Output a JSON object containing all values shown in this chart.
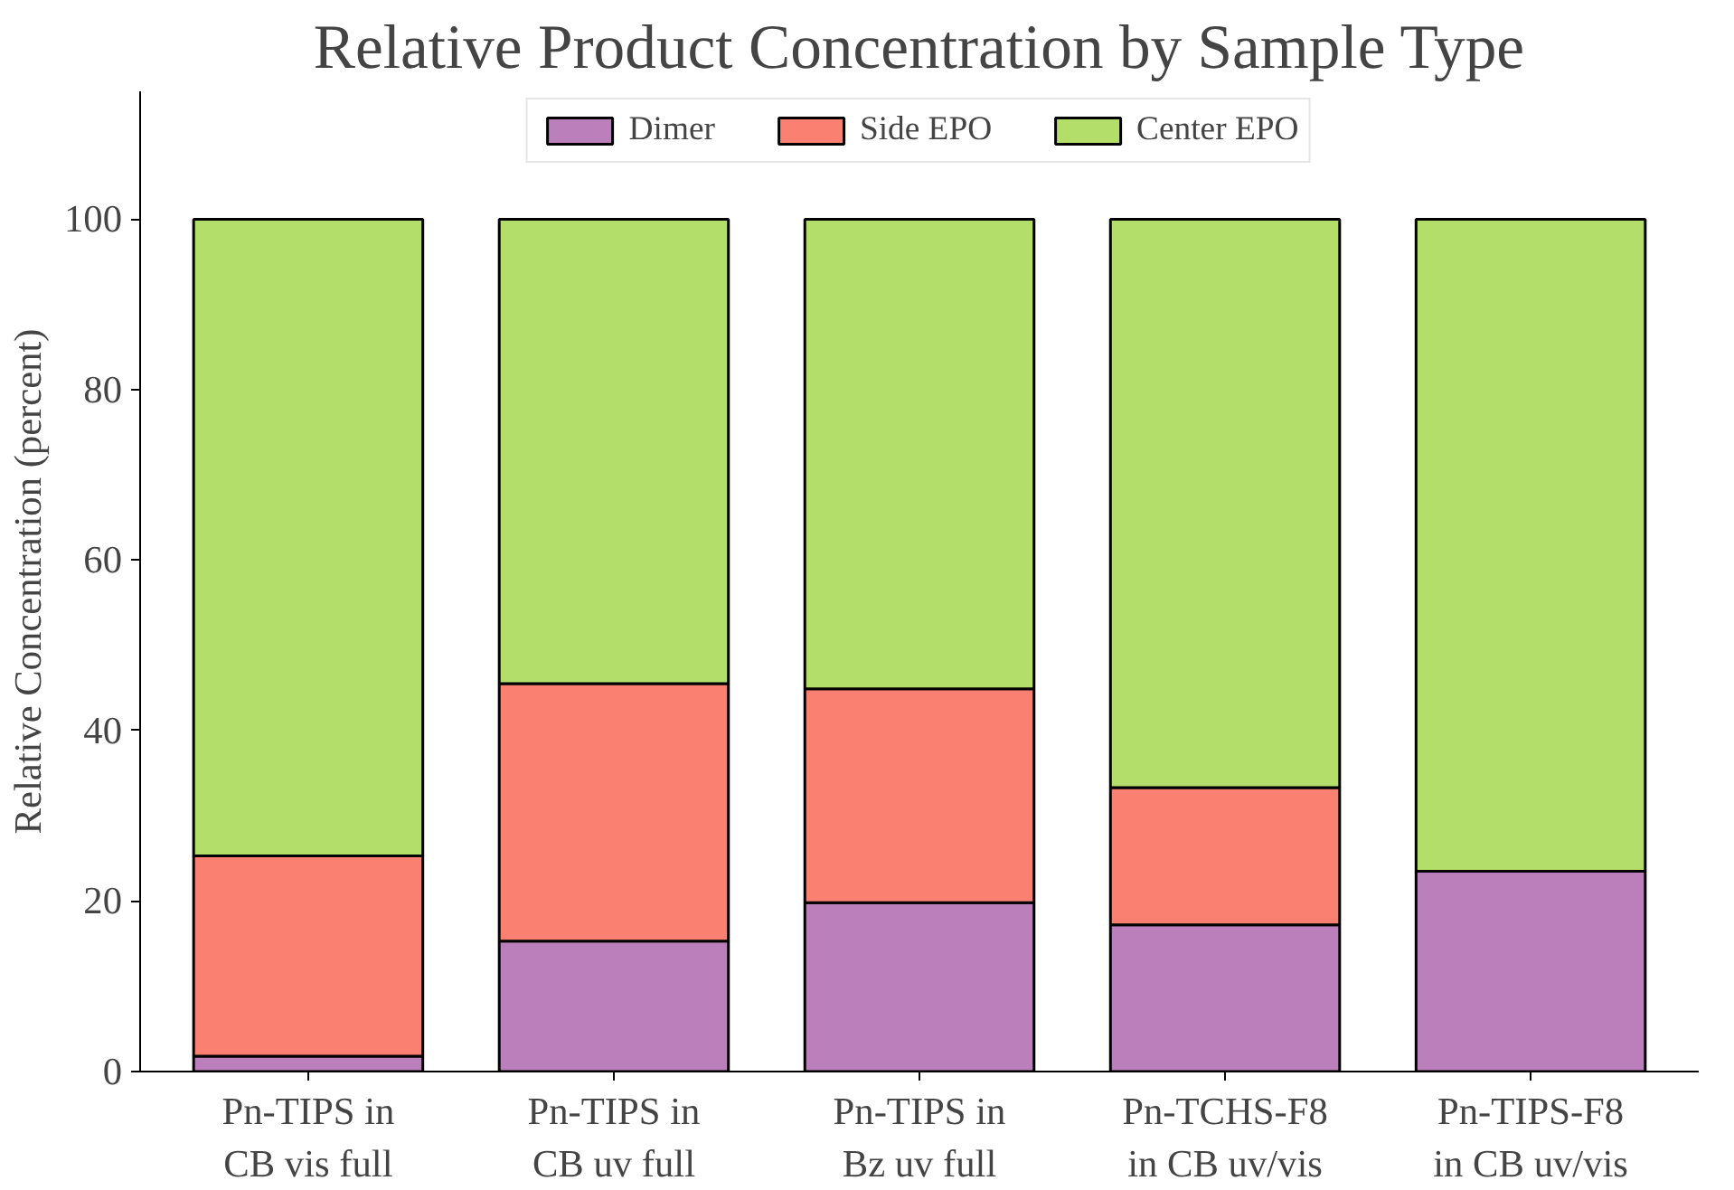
{
  "chart_data": {
    "type": "bar",
    "stacked": true,
    "title": "Relative Product Concentration by Sample Type",
    "ylabel": "Relative Concentration (percent)",
    "categories": [
      "Pn-TIPS in\nCB vis full",
      "Pn-TIPS in\nCB uv full",
      "Pn-TIPS in\nBz uv full",
      "Pn-TCHS-F8\nin CB uv/vis",
      "Pn-TIPS-F8\nin CB uv/vis"
    ],
    "series": [
      {
        "name": "Dimer",
        "color": "#bb80bb",
        "values": [
          1.8,
          15.3,
          19.8,
          17.2,
          23.5
        ]
      },
      {
        "name": "Side EPO",
        "color": "#fa8072",
        "values": [
          23.5,
          30.2,
          25.1,
          16.1,
          0
        ]
      },
      {
        "name": "Center EPO",
        "color": "#b3de69",
        "values": [
          74.7,
          54.5,
          55.1,
          66.7,
          76.5
        ]
      }
    ],
    "ylim": [
      0,
      115
    ],
    "yticks": [
      0,
      20,
      40,
      60,
      80,
      100
    ],
    "grid": false,
    "legend": "top"
  }
}
